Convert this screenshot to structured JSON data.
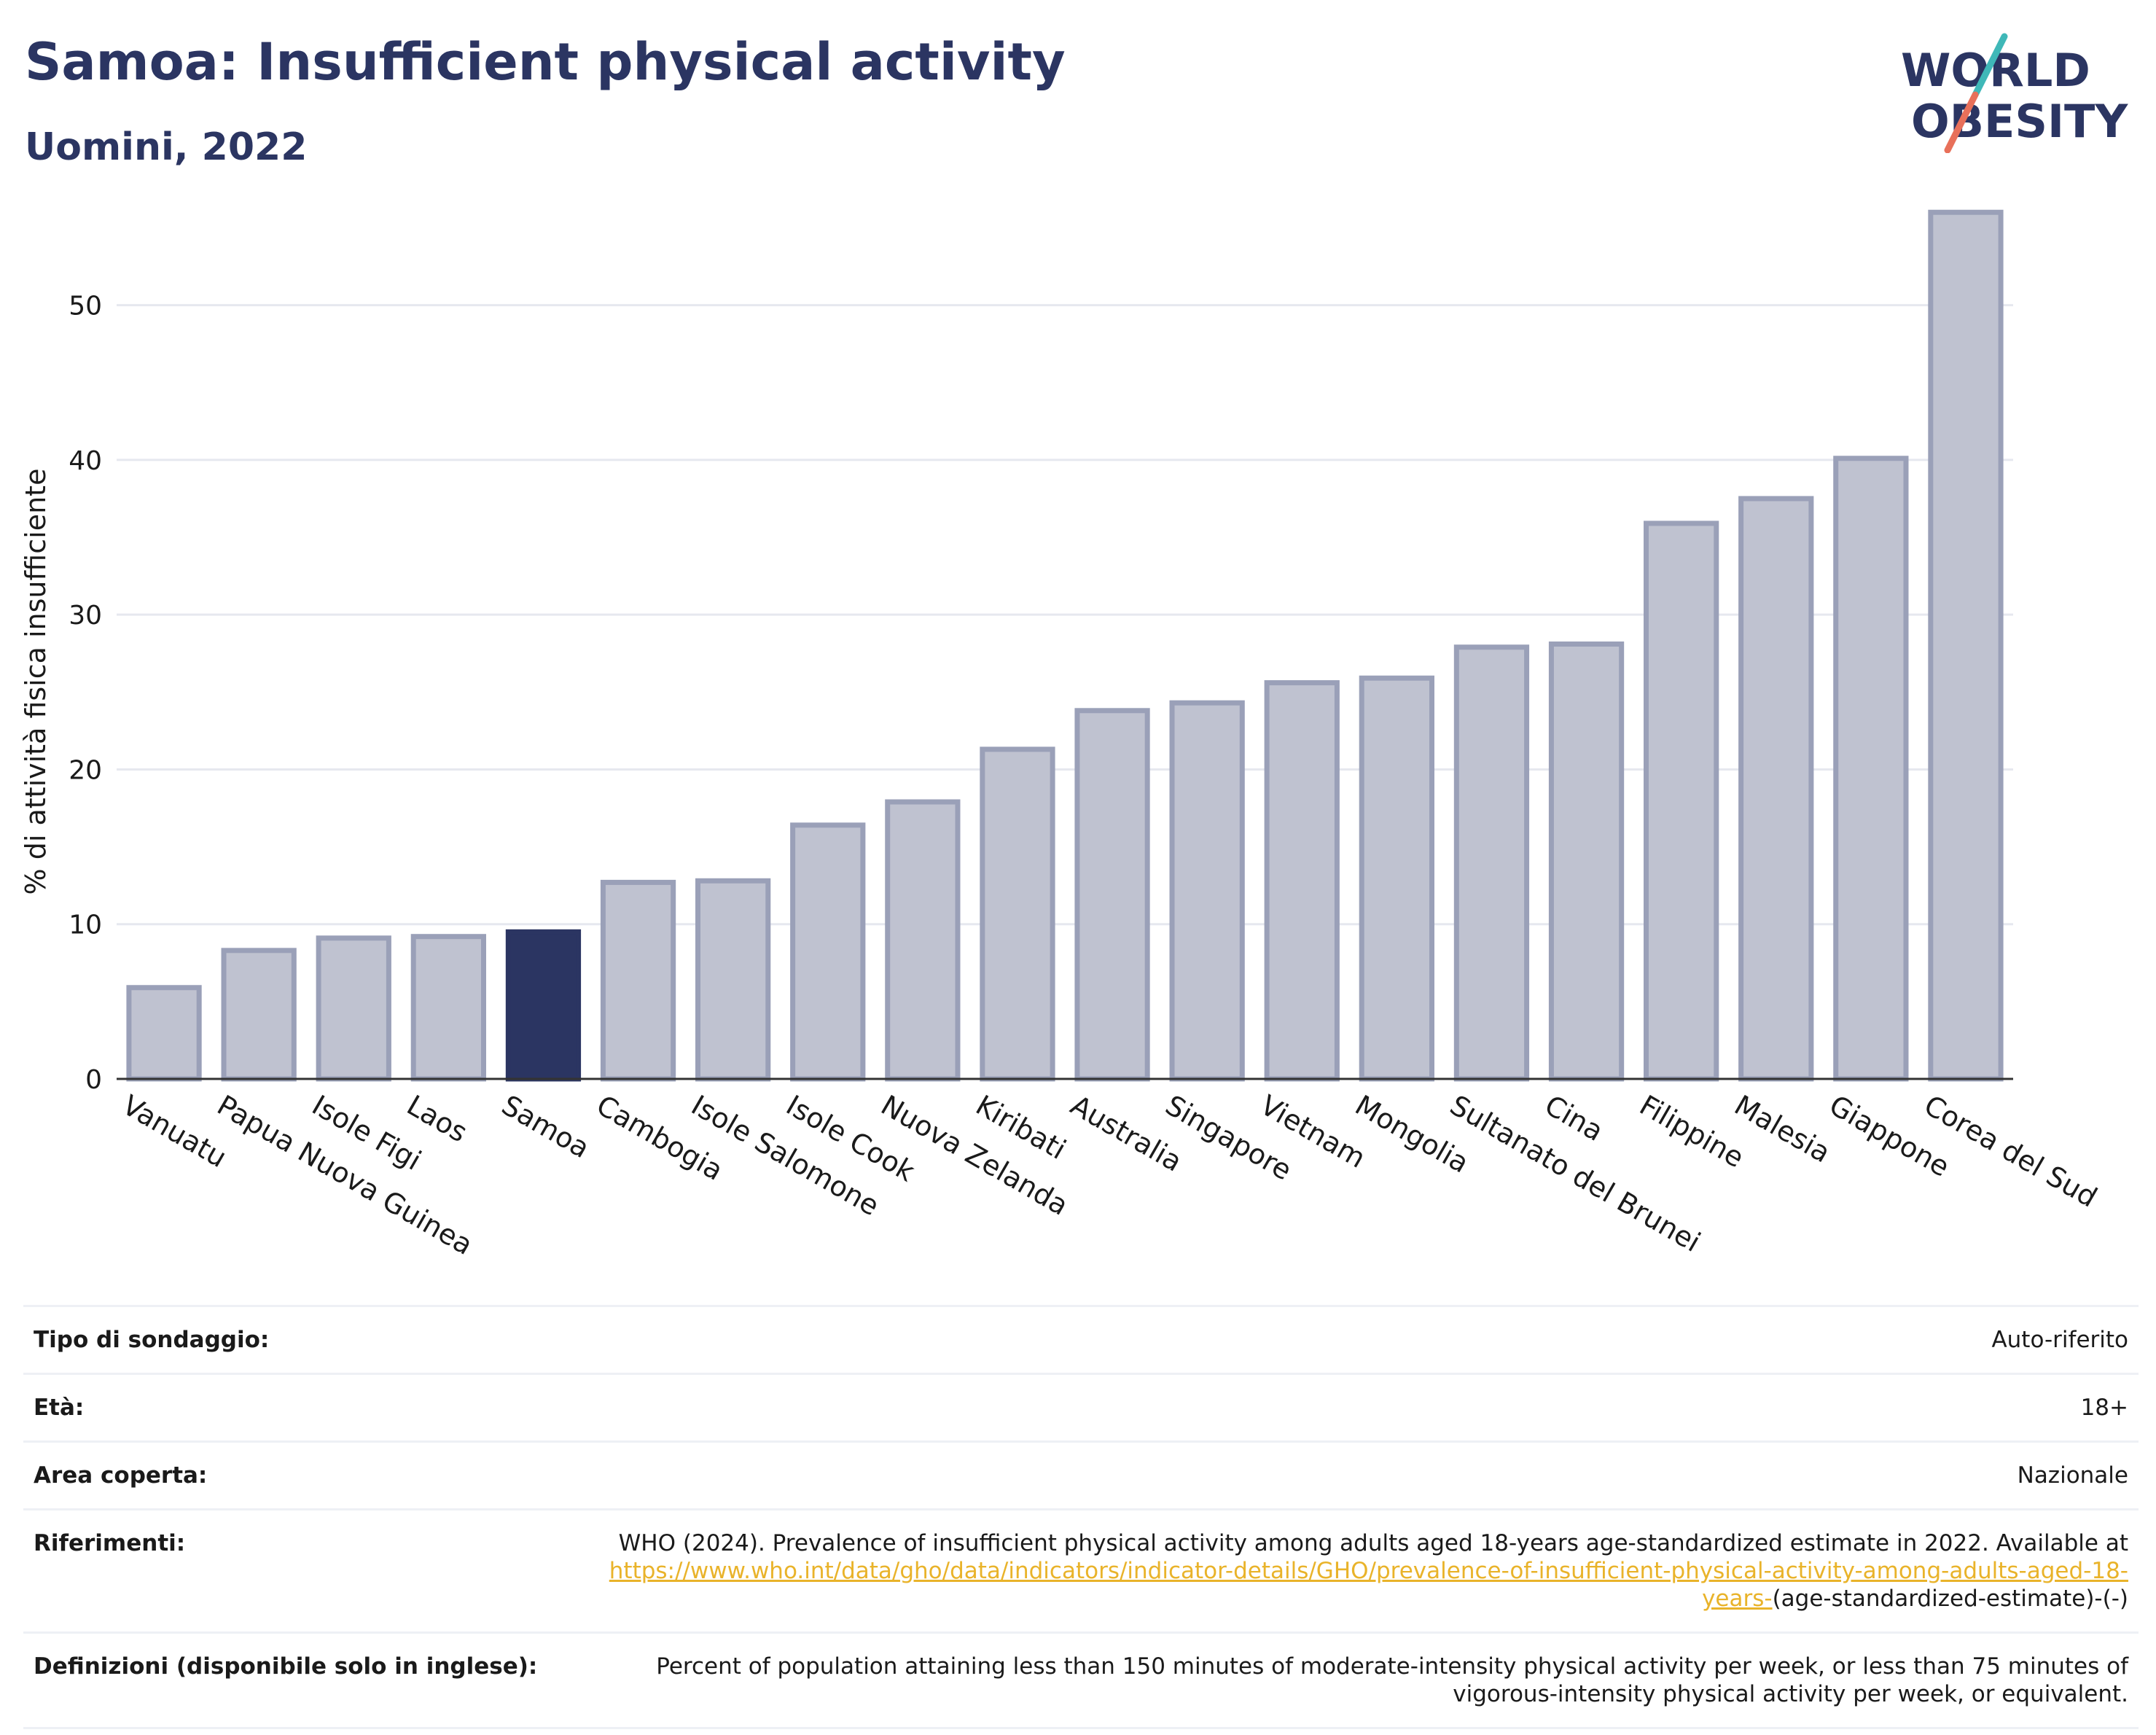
{
  "header": {
    "title": "Samoa: Insufficient physical activity",
    "subtitle": "Uomini, 2022"
  },
  "logo": {
    "line1": "WORLD",
    "line2": "OBESITY",
    "teal": "#3fb8b8",
    "coral": "#e8705a",
    "navy": "#2b3562"
  },
  "chart_data": {
    "type": "bar",
    "ylabel": "% di attività fisica insufficiente",
    "ylim": [
      0,
      57
    ],
    "yticks": [
      0,
      10,
      20,
      30,
      40,
      50
    ],
    "grid": true,
    "highlight": "Samoa",
    "colors": {
      "bar": "#bfc2d0",
      "bar_edge": "#9aa0b8",
      "highlight": "#2b3562"
    },
    "categories": [
      "Vanuatu",
      "Papua Nuova Guinea",
      "Isole Figi",
      "Laos",
      "Samoa",
      "Cambogia",
      "Isole Salomone",
      "Isole Cook",
      "Nuova Zelanda",
      "Kiribati",
      "Australia",
      "Singapore",
      "Vietnam",
      "Mongolia",
      "Sultanato del Brunei",
      "Cina",
      "Filippine",
      "Malesia",
      "Giappone",
      "Corea del Sud"
    ],
    "values": [
      5.9,
      8.3,
      9.1,
      9.2,
      9.5,
      12.7,
      12.8,
      16.4,
      17.9,
      21.3,
      23.8,
      24.3,
      25.6,
      25.9,
      27.9,
      28.1,
      35.9,
      37.5,
      40.1,
      56.0
    ]
  },
  "info": {
    "survey_type_label": "Tipo di sondaggio:",
    "survey_type_value": "Auto-riferito",
    "age_label": "Età:",
    "age_value": "18+",
    "area_label": "Area coperta:",
    "area_value": "Nazionale",
    "references_label": "Riferimenti:",
    "references_text": "WHO (2024). Prevalence of insufficient physical activity among adults aged 18-years age-standardized estimate in 2022. Available at",
    "references_link": "https://www.who.int/data/gho/data/indicators/indicator-details/GHO/prevalence-of-insufficient-physical-activity-among-adults-aged-18-years-",
    "references_suffix": "(age-standardized-estimate)-(-)",
    "definitions_label": "Definizioni (disponibile solo in inglese):",
    "definitions_text": "Percent of population attaining less than 150 minutes of moderate-intensity physical activity per week, or less than 75 minutes of vigorous-intensity physical activity per week, or equivalent."
  }
}
